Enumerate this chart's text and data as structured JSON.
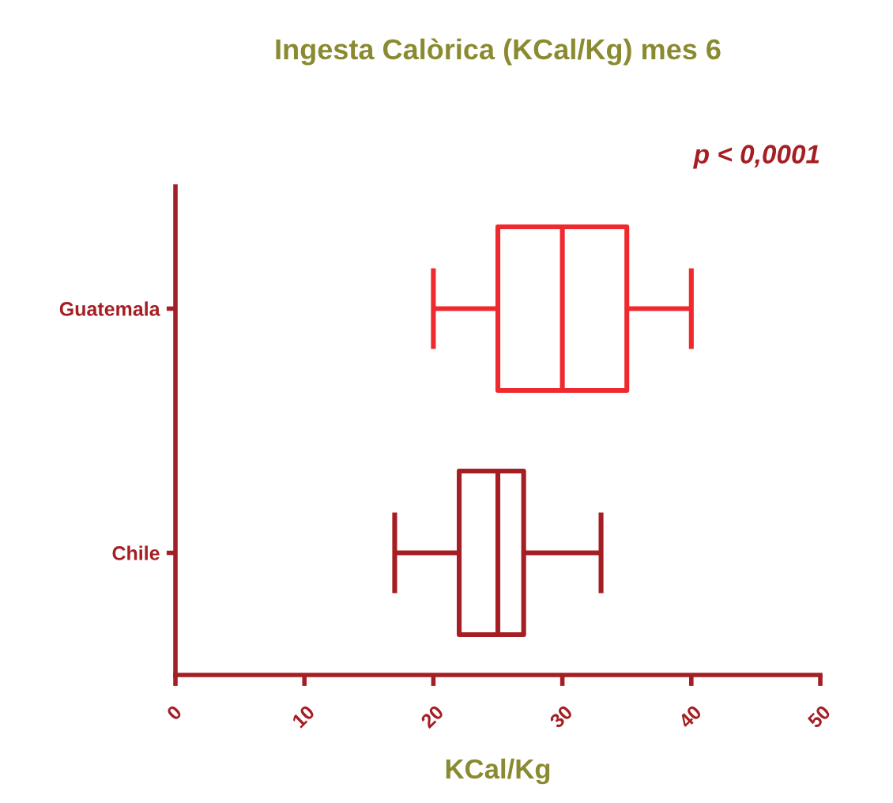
{
  "chart_data": {
    "type": "box",
    "title": "Ingesta Calòrica (KCal/Kg) mes 6",
    "xlabel": "KCal/Kg",
    "orientation": "horizontal",
    "categories": [
      "Guatemala",
      "Chile"
    ],
    "boxes": [
      {
        "low": 20,
        "q1": 25,
        "median": 30,
        "q3": 35,
        "high": 40
      },
      {
        "low": 17,
        "q1": 22,
        "median": 25,
        "q3": 27,
        "high": 33
      }
    ],
    "colors": [
      "#ee2a2e",
      "#a51e23"
    ],
    "xlim": [
      0,
      50
    ],
    "xticks": [
      0,
      10,
      20,
      30,
      40,
      50
    ],
    "annotations": [
      "p < 0,0001"
    ]
  }
}
